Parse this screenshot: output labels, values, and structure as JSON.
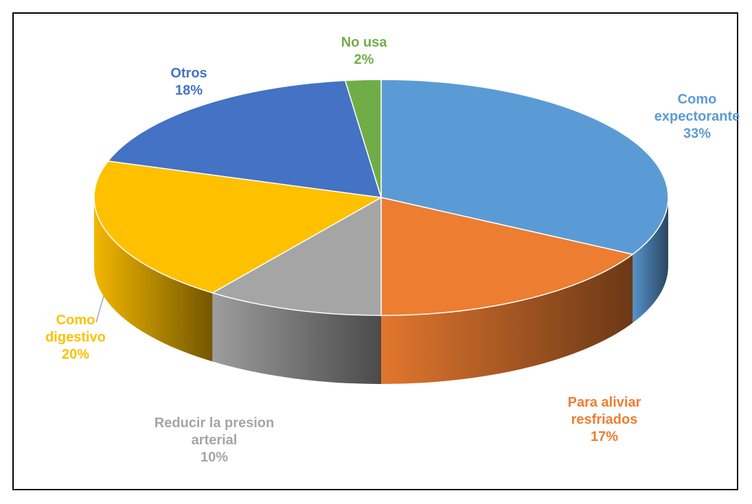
{
  "chart_data": {
    "type": "pie",
    "categories": [
      "Como expectorante",
      "Para aliviar resfriados",
      "Reducir la presion arterial",
      "Como digestivo",
      "Otros",
      "No usa"
    ],
    "values": [
      33,
      17,
      10,
      20,
      18,
      2
    ],
    "value_labels": [
      "33%",
      "17%",
      "10%",
      "20%",
      "18%",
      "2%"
    ],
    "colors": [
      "#5b9bd5",
      "#ed7d31",
      "#a5a5a5",
      "#ffc000",
      "#4472c4",
      "#70ad47"
    ]
  }
}
